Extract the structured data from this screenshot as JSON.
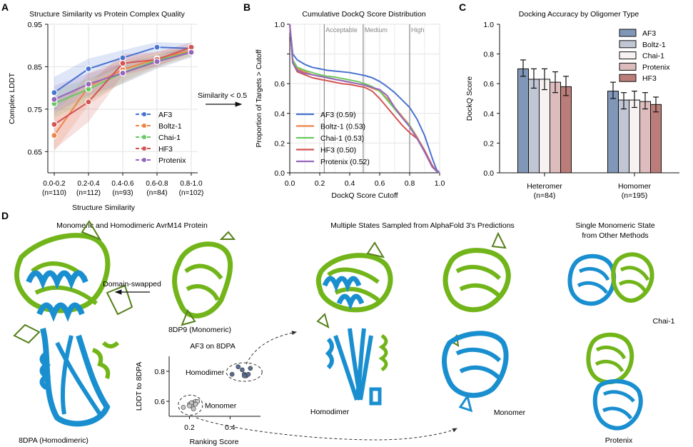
{
  "panel_labels": {
    "a": "A",
    "b": "B",
    "c": "C",
    "d": "D"
  },
  "colors": {
    "af3": "#4a72d0",
    "boltz": "#ee8547",
    "chai": "#6ac95f",
    "hf3": "#d45454",
    "protenix": "#9467bd",
    "bar_af3": "#8197b8",
    "bar_boltz": "#c0c6d4",
    "bar_chai": "#f7f1f1",
    "bar_protenix": "#dcbcbc",
    "bar_hf3": "#bb7d7a",
    "protein_green": "#72b51a",
    "protein_blue": "#1a8fd0",
    "dimer_points": "#5a6f96",
    "monomer_points": "#c8c8c8"
  },
  "arrow_note": "Similarity < 0.5",
  "chart_data": [
    {
      "id": "A",
      "type": "line",
      "title": "Structure Similarity vs Protein Complex Quality",
      "xlabel": "Structure Similarity",
      "ylabel": "Complex LDDT",
      "categories": [
        "0.0-0.2",
        "0.2-0.4",
        "0.4-0.6",
        "0.6-0.8",
        "0.8-1.0"
      ],
      "category_counts": [
        "(n=110)",
        "(n=112)",
        "(n=93)",
        "(n=84)",
        "(n=102)"
      ],
      "ylim": [
        0.6,
        0.95
      ],
      "yticks": [
        0.65,
        0.75,
        0.85,
        0.95
      ],
      "ytick_labels": [
        "0.65",
        "0.75",
        "0.85",
        "0.95"
      ],
      "grid": true,
      "legend_position": "lower-right",
      "series": [
        {
          "name": "AF3",
          "key": "af3",
          "values": [
            0.789,
            0.845,
            0.871,
            0.896,
            0.893
          ],
          "ci_low": [
            0.745,
            0.815,
            0.852,
            0.882,
            0.88
          ],
          "ci_high": [
            0.826,
            0.869,
            0.889,
            0.908,
            0.905
          ]
        },
        {
          "name": "Boltz-1",
          "key": "boltz",
          "values": [
            0.688,
            0.803,
            0.843,
            0.869,
            0.888
          ],
          "ci_low": [
            0.65,
            0.76,
            0.815,
            0.852,
            0.876
          ],
          "ci_high": [
            0.74,
            0.835,
            0.866,
            0.885,
            0.9
          ]
        },
        {
          "name": "Chai-1",
          "key": "chai",
          "values": [
            0.763,
            0.797,
            0.836,
            0.865,
            0.885
          ],
          "ci_low": [
            0.73,
            0.77,
            0.81,
            0.848,
            0.873
          ],
          "ci_high": [
            0.795,
            0.822,
            0.858,
            0.88,
            0.897
          ]
        },
        {
          "name": "HF3",
          "key": "hf3",
          "values": [
            0.714,
            0.767,
            0.858,
            0.867,
            0.896
          ],
          "ci_low": [
            0.655,
            0.72,
            0.83,
            0.85,
            0.884
          ],
          "ci_high": [
            0.77,
            0.81,
            0.88,
            0.884,
            0.908
          ]
        },
        {
          "name": "Protenix",
          "key": "protenix",
          "values": [
            0.773,
            0.809,
            0.835,
            0.862,
            0.884
          ],
          "ci_low": [
            0.74,
            0.782,
            0.81,
            0.845,
            0.872
          ],
          "ci_high": [
            0.805,
            0.834,
            0.858,
            0.878,
            0.896
          ]
        }
      ]
    },
    {
      "id": "B",
      "type": "line",
      "title": "Cumulative DockQ Score Distribution",
      "xlabel": "DockQ Score Cutoff",
      "ylabel": "Proportion of Targets > Cutoff",
      "xlim": [
        0,
        1
      ],
      "ylim": [
        0,
        1
      ],
      "xticks": [
        0.0,
        0.2,
        0.4,
        0.6,
        0.8,
        1.0
      ],
      "xtick_labels": [
        "0.0",
        "0.2",
        "0.4",
        "0.6",
        "0.8",
        "1.0"
      ],
      "yticks": [
        0.0,
        0.2,
        0.4,
        0.6,
        1.0
      ],
      "ytick_labels": [
        "0.0",
        "0.2",
        "0.4",
        "0.6",
        "1.0"
      ],
      "grid": true,
      "thresholds": [
        {
          "x": 0.23,
          "label": "Acceptable"
        },
        {
          "x": 0.49,
          "label": "Medium"
        },
        {
          "x": 0.8,
          "label": "High"
        }
      ],
      "legend_position": "lower-left",
      "x": [
        0.0,
        0.02,
        0.05,
        0.1,
        0.15,
        0.2,
        0.25,
        0.3,
        0.35,
        0.4,
        0.45,
        0.5,
        0.55,
        0.6,
        0.65,
        0.7,
        0.75,
        0.8,
        0.85,
        0.9,
        0.95,
        0.98,
        1.0
      ],
      "series": [
        {
          "name": "AF3 (0.59)",
          "key": "af3",
          "values": [
            1.0,
            0.8,
            0.76,
            0.73,
            0.71,
            0.7,
            0.69,
            0.685,
            0.68,
            0.675,
            0.665,
            0.655,
            0.64,
            0.615,
            0.58,
            0.54,
            0.49,
            0.44,
            0.36,
            0.25,
            0.1,
            0.02,
            0.0
          ]
        },
        {
          "name": "Boltz-1 (0.53)",
          "key": "boltz",
          "values": [
            1.0,
            0.75,
            0.7,
            0.68,
            0.66,
            0.65,
            0.64,
            0.63,
            0.62,
            0.61,
            0.6,
            0.59,
            0.57,
            0.55,
            0.5,
            0.44,
            0.38,
            0.32,
            0.24,
            0.15,
            0.05,
            0.01,
            0.0
          ]
        },
        {
          "name": "Chai-1 (0.53)",
          "key": "chai",
          "values": [
            1.0,
            0.76,
            0.71,
            0.69,
            0.675,
            0.66,
            0.65,
            0.645,
            0.635,
            0.625,
            0.615,
            0.6,
            0.58,
            0.55,
            0.49,
            0.43,
            0.37,
            0.32,
            0.23,
            0.14,
            0.04,
            0.01,
            0.0
          ]
        },
        {
          "name": "HF3 (0.50)",
          "key": "hf3",
          "values": [
            1.0,
            0.74,
            0.68,
            0.66,
            0.64,
            0.63,
            0.62,
            0.61,
            0.6,
            0.595,
            0.585,
            0.575,
            0.55,
            0.5,
            0.44,
            0.38,
            0.32,
            0.27,
            0.23,
            0.15,
            0.05,
            0.01,
            0.0
          ]
        },
        {
          "name": "Protenix (0.52)",
          "key": "protenix",
          "values": [
            1.0,
            0.74,
            0.69,
            0.67,
            0.66,
            0.65,
            0.64,
            0.63,
            0.62,
            0.61,
            0.6,
            0.59,
            0.575,
            0.56,
            0.52,
            0.44,
            0.37,
            0.31,
            0.23,
            0.14,
            0.04,
            0.01,
            0.0
          ]
        }
      ]
    },
    {
      "id": "C",
      "type": "bar",
      "title": "Docking Accuracy by Oligomer Type",
      "xlabel": "",
      "ylabel": "DockQ Score",
      "categories": [
        "Heteromer",
        "Homomer"
      ],
      "category_counts": [
        "(n=84)",
        "(n=195)"
      ],
      "ylim": [
        0,
        1
      ],
      "yticks": [
        0.0,
        0.2,
        0.4,
        0.6,
        0.8,
        1.0
      ],
      "ytick_labels": [
        "0.0",
        "0.2",
        "0.4",
        "0.6",
        "0.8",
        "1.0"
      ],
      "grid": false,
      "legend_position": "top-right",
      "series": [
        {
          "name": "AF3",
          "key": "bar_af3",
          "values": [
            0.7,
            0.55
          ],
          "err_low": [
            0.65,
            0.5
          ],
          "err_high": [
            0.76,
            0.61
          ]
        },
        {
          "name": "Boltz-1",
          "key": "bar_boltz",
          "values": [
            0.63,
            0.49
          ],
          "err_low": [
            0.57,
            0.43
          ],
          "err_high": [
            0.7,
            0.54
          ]
        },
        {
          "name": "Chai-1",
          "key": "bar_chai",
          "values": [
            0.63,
            0.49
          ],
          "err_low": [
            0.56,
            0.44
          ],
          "err_high": [
            0.7,
            0.55
          ]
        },
        {
          "name": "Protenix",
          "key": "bar_protenix",
          "values": [
            0.61,
            0.48
          ],
          "err_low": [
            0.54,
            0.43
          ],
          "err_high": [
            0.68,
            0.54
          ]
        },
        {
          "name": "HF3",
          "key": "bar_hf3",
          "values": [
            0.58,
            0.46
          ],
          "err_low": [
            0.52,
            0.41
          ],
          "err_high": [
            0.65,
            0.51
          ]
        }
      ]
    },
    {
      "id": "D-inset",
      "type": "scatter",
      "title": "AF3 on 8DPA",
      "xlabel": "Ranking Score",
      "ylabel": "LDDT to 8DPA",
      "xlim": [
        0.1,
        0.55
      ],
      "ylim": [
        0.5,
        0.9
      ],
      "xticks": [
        0.2,
        0.4
      ],
      "xtick_labels": [
        "0.2",
        "0.4"
      ],
      "yticks": [
        0.6,
        0.8
      ],
      "ytick_labels": [
        "0.6",
        "0.8"
      ],
      "groups": [
        {
          "name": "Homodimer",
          "key": "dimer_points",
          "points": [
            [
              0.41,
              0.78
            ],
            [
              0.44,
              0.83
            ],
            [
              0.46,
              0.81
            ],
            [
              0.47,
              0.78
            ],
            [
              0.48,
              0.77
            ],
            [
              0.49,
              0.78
            ],
            [
              0.5,
              0.82
            ],
            [
              0.47,
              0.77
            ]
          ]
        },
        {
          "name": "Monomer",
          "key": "monomer_points",
          "points": [
            [
              0.17,
              0.56
            ],
            [
              0.2,
              0.58
            ],
            [
              0.21,
              0.57
            ],
            [
              0.22,
              0.59
            ],
            [
              0.23,
              0.6
            ],
            [
              0.24,
              0.6
            ],
            [
              0.22,
              0.55
            ],
            [
              0.21,
              0.59
            ],
            [
              0.23,
              0.58
            ],
            [
              0.2,
              0.57
            ]
          ]
        }
      ]
    }
  ],
  "panel_d": {
    "left_title": "Monomeric and Homodimeric AvrM14 Protein",
    "middle_title": "Multiple States Sampled from AlphaFold 3's Predictions",
    "right_title_line1": "Single Monomeric State",
    "right_title_line2": "from Other Methods",
    "domain_swapped": "Domain-swapped",
    "label_8dpa": "8DPA (Homodimeric)",
    "label_8dp9": "8DP9 (Monomeric)",
    "label_homodimer": "Homodimer",
    "label_monomer": "Monomer",
    "label_chai": "Chai-1",
    "label_protenix": "Protenix"
  }
}
